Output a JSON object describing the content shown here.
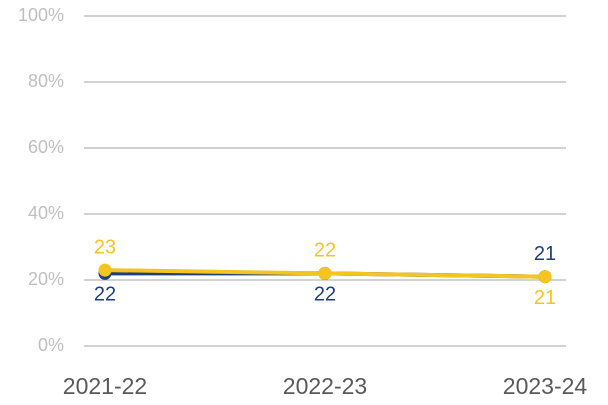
{
  "chart_data": {
    "type": "line",
    "categories": [
      "2021-22",
      "2022-23",
      "2023-24"
    ],
    "series": [
      {
        "name": null,
        "color": "#1d3f7e",
        "values": [
          22,
          22,
          21
        ]
      },
      {
        "name": null,
        "color": "#f4c41f",
        "values": [
          23,
          22,
          21
        ]
      }
    ],
    "ylim": [
      0,
      100
    ],
    "yticks": [
      {
        "value": 0,
        "label": "0%"
      },
      {
        "value": 20,
        "label": "20%"
      },
      {
        "value": 40,
        "label": "40%"
      },
      {
        "value": 60,
        "label": "60%"
      },
      {
        "value": 80,
        "label": "80%"
      },
      {
        "value": 100,
        "label": "100%"
      }
    ],
    "grid": true
  }
}
